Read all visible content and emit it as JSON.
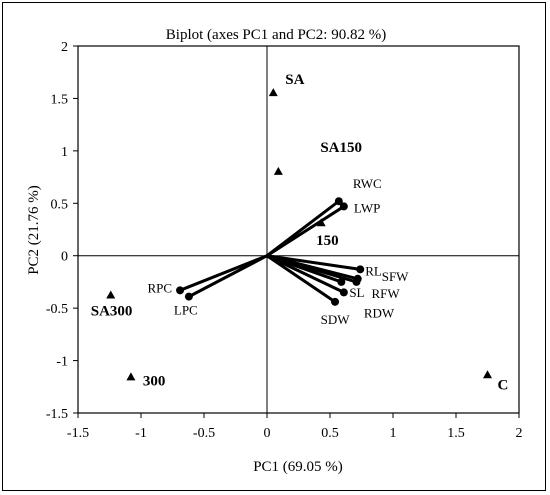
{
  "chart_data": {
    "type": "scatter",
    "title": "Biplot (axes PC1 and PC2: 90.82 %)",
    "xlabel": "PC1 (69.05 %)",
    "ylabel": "PC2 (21.76 %)",
    "xlim": [
      -1.5,
      2
    ],
    "ylim": [
      -1.5,
      2
    ],
    "xticks": [
      "-1.5",
      "-1",
      "-0.5",
      "0",
      "0.5",
      "1",
      "1.5",
      "2"
    ],
    "yticks": [
      "-1.5",
      "-1",
      "-0.5",
      "0",
      "0.5",
      "1",
      "1.5",
      "2"
    ],
    "observations": [
      {
        "label": "SA",
        "x": 0.05,
        "y": 1.55
      },
      {
        "label": "SA150",
        "x": 0.09,
        "y": 0.8
      },
      {
        "label": "150",
        "x": 0.43,
        "y": 0.31
      },
      {
        "label": "SA300",
        "x": -1.24,
        "y": -0.38
      },
      {
        "label": "300",
        "x": -1.08,
        "y": -1.16
      },
      {
        "label": "C",
        "x": 1.75,
        "y": -1.14
      }
    ],
    "variables": [
      {
        "label": "RWC",
        "x": 0.57,
        "y": 0.52
      },
      {
        "label": "LWP",
        "x": 0.61,
        "y": 0.47
      },
      {
        "label": "RL",
        "x": 0.74,
        "y": -0.13
      },
      {
        "label": "SFW",
        "x": 0.72,
        "y": -0.22
      },
      {
        "label": "RFW",
        "x": 0.71,
        "y": -0.25
      },
      {
        "label": "SL",
        "x": 0.59,
        "y": -0.25
      },
      {
        "label": "SDW",
        "x": 0.54,
        "y": -0.44
      },
      {
        "label": "RDW",
        "x": 0.61,
        "y": -0.35
      },
      {
        "label": "RPC",
        "x": -0.69,
        "y": -0.33
      },
      {
        "label": "LPC",
        "x": -0.62,
        "y": -0.39
      }
    ]
  }
}
